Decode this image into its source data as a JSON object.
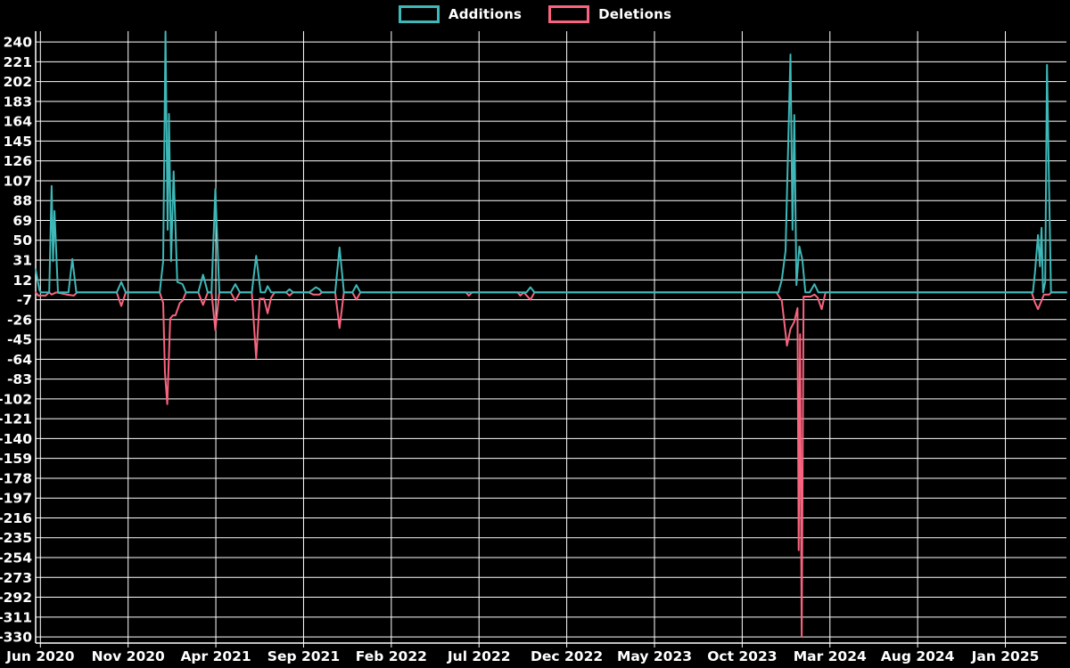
{
  "chart_data": {
    "type": "line",
    "title": "",
    "legend": [
      {
        "label": "Additions",
        "color": "#3eb8b8"
      },
      {
        "label": "Deletions",
        "color": "#f8647f"
      }
    ],
    "background_color": "#000000",
    "grid_color": "#ffffff",
    "axis_color": "#ffffff",
    "text_color": "#ffffff",
    "grid": true,
    "legend_position": "top-center",
    "x_axis": {
      "unit": "months since Jun 2020",
      "tick_labels": [
        "Jun 2020",
        "Nov 2020",
        "Apr 2021",
        "Sep 2021",
        "Feb 2022",
        "Jul 2022",
        "Dec 2022",
        "May 2023",
        "Oct 2023",
        "Mar 2024",
        "Aug 2024",
        "Jan 2025"
      ],
      "tick_positions": [
        0,
        5,
        10,
        15,
        20,
        25,
        30,
        35,
        40,
        45,
        50,
        55
      ],
      "domain_months": [
        -0.27,
        58.48
      ]
    },
    "y_axis": {
      "ticks": [
        240,
        221,
        202,
        183,
        164,
        145,
        126,
        107,
        88,
        69,
        50,
        31,
        12,
        -7,
        -26,
        -45,
        -64,
        -83,
        -102,
        -121,
        -140,
        -159,
        -178,
        -197,
        -216,
        -235,
        -254,
        -273,
        -292,
        -311,
        -330
      ],
      "domain": [
        250.3,
        -335.9
      ]
    },
    "series": [
      {
        "name": "Additions",
        "color": "#3eb8b8",
        "points": [
          [
            -0.27,
            22
          ],
          [
            -0.05,
            2
          ],
          [
            0.05,
            0
          ],
          [
            0.5,
            0
          ],
          [
            0.64,
            102
          ],
          [
            0.72,
            30
          ],
          [
            0.8,
            78
          ],
          [
            1.0,
            0
          ],
          [
            1.6,
            0
          ],
          [
            1.82,
            32
          ],
          [
            2.05,
            0
          ],
          [
            4.35,
            0
          ],
          [
            4.61,
            10
          ],
          [
            4.87,
            0
          ],
          [
            6.8,
            0
          ],
          [
            7.0,
            30
          ],
          [
            7.13,
            250
          ],
          [
            7.25,
            60
          ],
          [
            7.33,
            171
          ],
          [
            7.45,
            30
          ],
          [
            7.59,
            116
          ],
          [
            7.8,
            10
          ],
          [
            8.1,
            8
          ],
          [
            8.3,
            0
          ],
          [
            9.0,
            0
          ],
          [
            9.27,
            17
          ],
          [
            9.54,
            0
          ],
          [
            9.75,
            0
          ],
          [
            9.97,
            99
          ],
          [
            10.2,
            0
          ],
          [
            10.85,
            0
          ],
          [
            11.11,
            8
          ],
          [
            11.37,
            0
          ],
          [
            12.05,
            0
          ],
          [
            12.3,
            35
          ],
          [
            12.55,
            0
          ],
          [
            12.8,
            0
          ],
          [
            12.95,
            6
          ],
          [
            13.15,
            0
          ],
          [
            14.0,
            0
          ],
          [
            14.2,
            3
          ],
          [
            14.4,
            0
          ],
          [
            15.3,
            0
          ],
          [
            15.55,
            3
          ],
          [
            15.7,
            5
          ],
          [
            15.9,
            3
          ],
          [
            16.05,
            0
          ],
          [
            16.8,
            0
          ],
          [
            17.05,
            43
          ],
          [
            17.3,
            0
          ],
          [
            17.78,
            0
          ],
          [
            18.01,
            7
          ],
          [
            18.24,
            0
          ],
          [
            27.7,
            0
          ],
          [
            27.93,
            5
          ],
          [
            28.16,
            0
          ],
          [
            42.06,
            0
          ],
          [
            42.26,
            12
          ],
          [
            42.47,
            40
          ],
          [
            42.75,
            228
          ],
          [
            42.87,
            60
          ],
          [
            42.97,
            170
          ],
          [
            43.09,
            7
          ],
          [
            43.26,
            44
          ],
          [
            43.43,
            31
          ],
          [
            43.6,
            0
          ],
          [
            43.85,
            0
          ],
          [
            44.12,
            8
          ],
          [
            44.34,
            0
          ],
          [
            56.57,
            0
          ],
          [
            56.69,
            20
          ],
          [
            56.86,
            55
          ],
          [
            56.97,
            25
          ],
          [
            57.06,
            62
          ],
          [
            57.15,
            0
          ],
          [
            57.27,
            10
          ],
          [
            57.37,
            218
          ],
          [
            57.48,
            112
          ],
          [
            57.6,
            0
          ],
          [
            58.48,
            0
          ]
        ]
      },
      {
        "name": "Deletions",
        "color": "#f8647f",
        "points": [
          [
            -0.27,
            0
          ],
          [
            -0.12,
            -3
          ],
          [
            0.3,
            -3
          ],
          [
            0.5,
            0
          ],
          [
            0.64,
            -2
          ],
          [
            0.9,
            0
          ],
          [
            1.5,
            -2
          ],
          [
            1.9,
            -3
          ],
          [
            2.1,
            0
          ],
          [
            4.35,
            0
          ],
          [
            4.61,
            -13
          ],
          [
            4.87,
            0
          ],
          [
            6.8,
            0
          ],
          [
            7.0,
            -10
          ],
          [
            7.1,
            -77
          ],
          [
            7.23,
            -107
          ],
          [
            7.4,
            -25
          ],
          [
            7.55,
            -22
          ],
          [
            7.7,
            -22
          ],
          [
            7.95,
            -10
          ],
          [
            8.1,
            -8
          ],
          [
            8.3,
            0
          ],
          [
            9.0,
            0
          ],
          [
            9.27,
            -12
          ],
          [
            9.54,
            0
          ],
          [
            9.75,
            0
          ],
          [
            9.97,
            -36
          ],
          [
            10.2,
            0
          ],
          [
            10.85,
            0
          ],
          [
            11.11,
            -8
          ],
          [
            11.37,
            0
          ],
          [
            12.05,
            0
          ],
          [
            12.3,
            -63
          ],
          [
            12.5,
            -6
          ],
          [
            12.75,
            -6
          ],
          [
            12.95,
            -20
          ],
          [
            13.15,
            -5
          ],
          [
            13.35,
            0
          ],
          [
            14.0,
            0
          ],
          [
            14.2,
            -3
          ],
          [
            14.4,
            0
          ],
          [
            15.3,
            0
          ],
          [
            15.55,
            -2
          ],
          [
            15.9,
            -2
          ],
          [
            16.05,
            0
          ],
          [
            16.8,
            0
          ],
          [
            17.05,
            -34
          ],
          [
            17.3,
            0
          ],
          [
            17.78,
            0
          ],
          [
            18.01,
            -7
          ],
          [
            18.24,
            0
          ],
          [
            24.25,
            0
          ],
          [
            24.42,
            -3
          ],
          [
            24.6,
            0
          ],
          [
            27.2,
            0
          ],
          [
            27.35,
            -3
          ],
          [
            27.55,
            0
          ],
          [
            27.93,
            -7
          ],
          [
            28.16,
            0
          ],
          [
            41.95,
            0
          ],
          [
            42.26,
            -8
          ],
          [
            42.55,
            -51
          ],
          [
            42.75,
            -35
          ],
          [
            42.97,
            -28
          ],
          [
            43.15,
            -15
          ],
          [
            43.22,
            -247
          ],
          [
            43.3,
            -40
          ],
          [
            43.39,
            -330
          ],
          [
            43.5,
            -4
          ],
          [
            43.9,
            -4
          ],
          [
            44.12,
            -2
          ],
          [
            44.3,
            -5
          ],
          [
            44.53,
            -16
          ],
          [
            44.75,
            0
          ],
          [
            56.5,
            0
          ],
          [
            56.69,
            -10
          ],
          [
            56.86,
            -16
          ],
          [
            57.06,
            -8
          ],
          [
            57.2,
            -2
          ],
          [
            57.5,
            -2
          ],
          [
            57.62,
            0
          ],
          [
            58.48,
            0
          ]
        ]
      }
    ]
  }
}
